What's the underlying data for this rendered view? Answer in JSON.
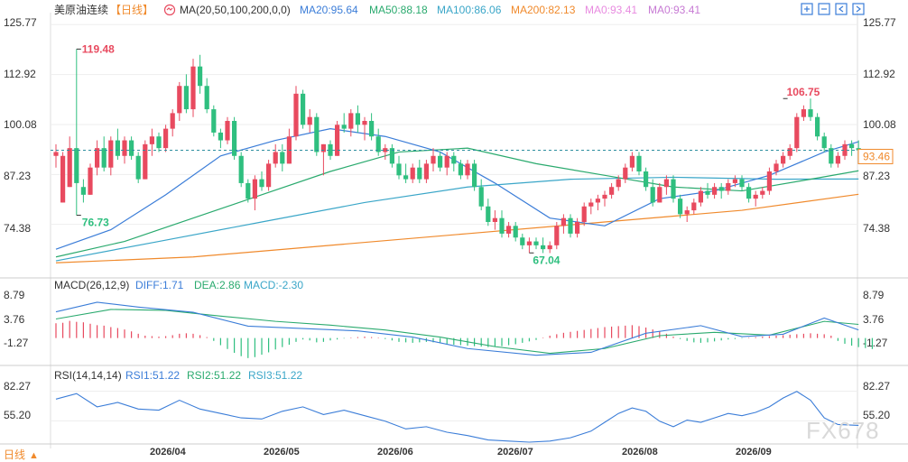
{
  "instrument": {
    "name": "美原油连续",
    "period": "【日线】"
  },
  "ma_header": {
    "label": "MA(20,50,100,200,0,0)",
    "values": [
      {
        "text": "MA20:95.64",
        "color": "#3b7dd8"
      },
      {
        "text": "MA50:88.18",
        "color": "#2aaa6e"
      },
      {
        "text": "MA100:86.06",
        "color": "#3aa6c8"
      },
      {
        "text": "MA200:82.13",
        "color": "#f08a2c"
      },
      {
        "text": "MA0:93.41",
        "color": "#e88be0"
      },
      {
        "text": "MA0:93.41",
        "color": "#c77ad4"
      }
    ]
  },
  "macd_header": {
    "label": "MACD(26,12,9)",
    "values": [
      {
        "text": "DIFF:1.71",
        "color": "#3b7dd8"
      },
      {
        "text": "DEA:2.86",
        "color": "#2aaa6e"
      },
      {
        "text": "MACD:-2.30",
        "color": "#3aa6c8"
      }
    ]
  },
  "rsi_header": {
    "label": "RSI(14,14,14)",
    "values": [
      {
        "text": "RSI1:51.22",
        "color": "#3b7dd8"
      },
      {
        "text": "RSI2:51.22",
        "color": "#2aaa6e"
      },
      {
        "text": "RSI3:51.22",
        "color": "#3aa6c8"
      }
    ]
  },
  "price_axis": {
    "ticks": [
      "125.77",
      "112.92",
      "100.08",
      "87.23",
      "74.38"
    ]
  },
  "macd_axis": {
    "ticks": [
      "8.79",
      "3.76",
      "-1.27"
    ]
  },
  "rsi_axis": {
    "ticks": [
      "82.27",
      "55.20"
    ]
  },
  "annotations": {
    "high": "119.48",
    "low": "76.73",
    "bottom_low": "67.04",
    "recent_high": "106.75",
    "last_price": "93.46"
  },
  "dates": [
    "2026/04",
    "2026/05",
    "2026/06",
    "2026/07",
    "2026/08",
    "2026/09"
  ],
  "footer": {
    "label": "日线",
    "arrow": "▲"
  },
  "watermark": "FX678",
  "colors": {
    "up": "#e84a5f",
    "down": "#2fbf7f",
    "grid": "#eeeeee",
    "lastline": "#2d8f9f",
    "last_bg": "#f08a2c"
  },
  "icons": [
    "zoom-in-icon",
    "zoom-out-icon",
    "scroll-left-icon",
    "scroll-right-icon"
  ],
  "chart_data": {
    "type": "candlestick",
    "y_range": [
      62,
      127
    ],
    "candles": [
      [
        92,
        95,
        89,
        93
      ],
      [
        80,
        93,
        80,
        92
      ],
      [
        84,
        97,
        84,
        94
      ],
      [
        94,
        119.48,
        76.73,
        85
      ],
      [
        84,
        86,
        80,
        82
      ],
      [
        82,
        90,
        82,
        89
      ],
      [
        89,
        96,
        87,
        94
      ],
      [
        94,
        97,
        88,
        89
      ],
      [
        89,
        97,
        87,
        96
      ],
      [
        96,
        99,
        91,
        92
      ],
      [
        92,
        97,
        90,
        96
      ],
      [
        96,
        97,
        91,
        92
      ],
      [
        92,
        93,
        85,
        86
      ],
      [
        86,
        96,
        86,
        95
      ],
      [
        95,
        99,
        92,
        97
      ],
      [
        97,
        98,
        93,
        94
      ],
      [
        94,
        100,
        93,
        99
      ],
      [
        99,
        104,
        97,
        103
      ],
      [
        103,
        111,
        101,
        110
      ],
      [
        110,
        113,
        103,
        104
      ],
      [
        104,
        117,
        102,
        115
      ],
      [
        115,
        118,
        108,
        110
      ],
      [
        110,
        112,
        103,
        104
      ],
      [
        104,
        105,
        97,
        98
      ],
      [
        98,
        99,
        94,
        96
      ],
      [
        96,
        102,
        95,
        101
      ],
      [
        101,
        102,
        91,
        92
      ],
      [
        92,
        93,
        84,
        85
      ],
      [
        85,
        86,
        80,
        81
      ],
      [
        81,
        87,
        78,
        86
      ],
      [
        86,
        88,
        83,
        84
      ],
      [
        84,
        91,
        83,
        90
      ],
      [
        90,
        95,
        89,
        93
      ],
      [
        93,
        95,
        88,
        90
      ],
      [
        90,
        99,
        90,
        97
      ],
      [
        97,
        110,
        96,
        108
      ],
      [
        108,
        109,
        99,
        100
      ],
      [
        100,
        104,
        98,
        102
      ],
      [
        102,
        103,
        92,
        93
      ],
      [
        93,
        95,
        87,
        95
      ],
      [
        95,
        96,
        91,
        92
      ],
      [
        92,
        101,
        92,
        100
      ],
      [
        100,
        103,
        98,
        99
      ],
      [
        99,
        104,
        97,
        103
      ],
      [
        103,
        105,
        98,
        100
      ],
      [
        100,
        102,
        96,
        101
      ],
      [
        101,
        103,
        96,
        97
      ],
      [
        97,
        99,
        92,
        93
      ],
      [
        93,
        95,
        91,
        94
      ],
      [
        94,
        95,
        89,
        90
      ],
      [
        90,
        92,
        86,
        87
      ],
      [
        87,
        90,
        85,
        86
      ],
      [
        86,
        90,
        85,
        89
      ],
      [
        89,
        91,
        85,
        86
      ],
      [
        86,
        91,
        85,
        90
      ],
      [
        90,
        94,
        88,
        92
      ],
      [
        92,
        93,
        88,
        89
      ],
      [
        89,
        93,
        87,
        92
      ],
      [
        92,
        93,
        88,
        90
      ],
      [
        90,
        91,
        86,
        87
      ],
      [
        87,
        91,
        86,
        90
      ],
      [
        90,
        91,
        83,
        84
      ],
      [
        84,
        86,
        78,
        79
      ],
      [
        79,
        81,
        74,
        75
      ],
      [
        75,
        78,
        73,
        76
      ],
      [
        76,
        78,
        71,
        72
      ],
      [
        72,
        75,
        71,
        74
      ],
      [
        74,
        75,
        70,
        71
      ],
      [
        71,
        72,
        68,
        69
      ],
      [
        69,
        71,
        67.04,
        70
      ],
      [
        70,
        71,
        68,
        69
      ],
      [
        69,
        71,
        67,
        68
      ],
      [
        68,
        70,
        67,
        69
      ],
      [
        69,
        75,
        68,
        74
      ],
      [
        74,
        77,
        72,
        76
      ],
      [
        76,
        77,
        71,
        72
      ],
      [
        72,
        76,
        71,
        75
      ],
      [
        75,
        80,
        74,
        79
      ],
      [
        79,
        81,
        77,
        80
      ],
      [
        80,
        82,
        78,
        81
      ],
      [
        81,
        83,
        79,
        82
      ],
      [
        82,
        85,
        81,
        84
      ],
      [
        84,
        87,
        83,
        86
      ],
      [
        86,
        90,
        85,
        89
      ],
      [
        89,
        93,
        88,
        92
      ],
      [
        92,
        93,
        87,
        88
      ],
      [
        88,
        89,
        83,
        84
      ],
      [
        84,
        86,
        79,
        80
      ],
      [
        80,
        85,
        80,
        84
      ],
      [
        84,
        87,
        82,
        86
      ],
      [
        86,
        87,
        80,
        81
      ],
      [
        81,
        82,
        76,
        77
      ],
      [
        77,
        79,
        75,
        78
      ],
      [
        78,
        81,
        77,
        80
      ],
      [
        80,
        84,
        79,
        83
      ],
      [
        83,
        85,
        81,
        82
      ],
      [
        82,
        85,
        81,
        84
      ],
      [
        84,
        85,
        81,
        83
      ],
      [
        83,
        86,
        82,
        85
      ],
      [
        85,
        87,
        84,
        86
      ],
      [
        86,
        87,
        83,
        84
      ],
      [
        84,
        85,
        80,
        81
      ],
      [
        81,
        83,
        79,
        82
      ],
      [
        82,
        84,
        81,
        83
      ],
      [
        83,
        89,
        82,
        88
      ],
      [
        88,
        91,
        87,
        90
      ],
      [
        90,
        93,
        89,
        92
      ],
      [
        92,
        95,
        91,
        94
      ],
      [
        94,
        103,
        93,
        102
      ],
      [
        102,
        105,
        101,
        104
      ],
      [
        104,
        106.75,
        101,
        102
      ],
      [
        102,
        103,
        96,
        97
      ],
      [
        97,
        98,
        93,
        94
      ],
      [
        94,
        95,
        89,
        90
      ],
      [
        90,
        93,
        89,
        92
      ],
      [
        92,
        96,
        91,
        95
      ],
      [
        95,
        96,
        92,
        94
      ],
      [
        94,
        96,
        92,
        93.46
      ]
    ],
    "ma20": [
      [
        0,
        68
      ],
      [
        8,
        73
      ],
      [
        16,
        82
      ],
      [
        24,
        92
      ],
      [
        32,
        96
      ],
      [
        40,
        99
      ],
      [
        48,
        97
      ],
      [
        56,
        93
      ],
      [
        64,
        85
      ],
      [
        72,
        76
      ],
      [
        80,
        74
      ],
      [
        88,
        81
      ],
      [
        96,
        83
      ],
      [
        104,
        87
      ],
      [
        112,
        93
      ],
      [
        117,
        95.64
      ]
    ],
    "ma50": [
      [
        0,
        66
      ],
      [
        10,
        70
      ],
      [
        20,
        76
      ],
      [
        30,
        82
      ],
      [
        40,
        88
      ],
      [
        50,
        93
      ],
      [
        60,
        94
      ],
      [
        70,
        90
      ],
      [
        80,
        87
      ],
      [
        90,
        84
      ],
      [
        100,
        83
      ],
      [
        110,
        86
      ],
      [
        117,
        88.18
      ]
    ],
    "ma100": [
      [
        0,
        65
      ],
      [
        15,
        70
      ],
      [
        30,
        75
      ],
      [
        45,
        80
      ],
      [
        60,
        84
      ],
      [
        75,
        86
      ],
      [
        90,
        86.5
      ],
      [
        105,
        86
      ],
      [
        117,
        86.06
      ]
    ],
    "ma200": [
      [
        0,
        64.5
      ],
      [
        20,
        66
      ],
      [
        40,
        69
      ],
      [
        60,
        72
      ],
      [
        80,
        75
      ],
      [
        100,
        78
      ],
      [
        117,
        82.13
      ]
    ],
    "macd_range": [
      -4.8,
      9.2
    ],
    "macd_hist": [
      3.1,
      3.2,
      3.6,
      3.4,
      3.3,
      3.0,
      2.7,
      2.6,
      2.3,
      2.1,
      1.8,
      1.4,
      0.9,
      0.5,
      0.4,
      0.3,
      0.4,
      0.6,
      0.9,
      1.0,
      0.9,
      0.6,
      0.2,
      -0.6,
      -1.5,
      -2.3,
      -3.1,
      -3.8,
      -4.2,
      -4.0,
      -3.5,
      -3.0,
      -2.4,
      -1.9,
      -1.4,
      -0.8,
      -0.3,
      -0.5,
      -0.9,
      -0.8,
      -0.5,
      -0.3,
      -0.1,
      0.1,
      0.2,
      0.3,
      0.2,
      0.1,
      -0.2,
      -0.5,
      -0.8,
      -0.9,
      -1.0,
      -0.9,
      -0.8,
      -0.9,
      -1.1,
      -1.3,
      -1.4,
      -1.5,
      -1.6,
      -1.7,
      -1.8,
      -1.9,
      -1.8,
      -1.7,
      -1.5,
      -1.3,
      -1.0,
      -0.7,
      -0.4,
      0.1,
      0.5,
      0.8,
      1.1,
      1.3,
      1.5,
      1.7,
      1.9,
      2.1,
      2.3,
      2.4,
      2.5,
      2.6,
      2.7,
      2.5,
      2.2,
      1.8,
      1.4,
      0.9,
      0.3,
      -0.2,
      -0.6,
      -0.9,
      -1.0,
      -0.9,
      -0.7,
      -0.5,
      -0.3,
      -0.2,
      -0.1,
      0.1,
      0.2,
      0.3,
      0.4,
      0.5,
      0.6,
      0.7,
      0.8,
      0.9,
      1.0,
      0.9,
      0.8,
      0.5,
      -0.6,
      -1.2,
      -1.6,
      -1.9,
      -2.1,
      -2.3
    ],
    "macd_diff": [
      [
        0,
        5.5
      ],
      [
        6,
        7.5
      ],
      [
        12,
        6.5
      ],
      [
        20,
        5.4
      ],
      [
        28,
        2.5
      ],
      [
        36,
        2.0
      ],
      [
        44,
        1.5
      ],
      [
        52,
        0.2
      ],
      [
        60,
        -2.2
      ],
      [
        70,
        -3.6
      ],
      [
        78,
        -3.0
      ],
      [
        86,
        1.0
      ],
      [
        94,
        2.6
      ],
      [
        100,
        0.3
      ],
      [
        106,
        0.8
      ],
      [
        112,
        4.2
      ],
      [
        117,
        1.71
      ]
    ],
    "macd_dea": [
      [
        0,
        4.0
      ],
      [
        8,
        6.0
      ],
      [
        16,
        5.8
      ],
      [
        24,
        4.6
      ],
      [
        32,
        3.5
      ],
      [
        40,
        2.7
      ],
      [
        48,
        1.7
      ],
      [
        56,
        0.2
      ],
      [
        64,
        -1.8
      ],
      [
        72,
        -3.2
      ],
      [
        80,
        -2.2
      ],
      [
        88,
        0.5
      ],
      [
        96,
        1.2
      ],
      [
        104,
        0.6
      ],
      [
        112,
        3.5
      ],
      [
        117,
        2.86
      ]
    ],
    "rsi_range": [
      36,
      90
    ],
    "rsi1": [
      [
        0,
        75
      ],
      [
        3,
        80
      ],
      [
        6,
        68
      ],
      [
        9,
        72
      ],
      [
        12,
        66
      ],
      [
        15,
        65
      ],
      [
        18,
        74
      ],
      [
        21,
        66
      ],
      [
        24,
        62
      ],
      [
        27,
        58
      ],
      [
        30,
        57
      ],
      [
        33,
        64
      ],
      [
        36,
        68
      ],
      [
        39,
        61
      ],
      [
        42,
        65
      ],
      [
        45,
        60
      ],
      [
        48,
        55
      ],
      [
        51,
        48
      ],
      [
        54,
        50
      ],
      [
        57,
        45
      ],
      [
        60,
        42
      ],
      [
        63,
        38
      ],
      [
        66,
        37
      ],
      [
        69,
        36
      ],
      [
        72,
        37
      ],
      [
        75,
        40
      ],
      [
        78,
        46
      ],
      [
        80,
        54
      ],
      [
        82,
        62
      ],
      [
        84,
        67
      ],
      [
        86,
        64
      ],
      [
        88,
        55
      ],
      [
        90,
        50
      ],
      [
        92,
        56
      ],
      [
        94,
        54
      ],
      [
        96,
        58
      ],
      [
        98,
        62
      ],
      [
        100,
        60
      ],
      [
        102,
        63
      ],
      [
        104,
        68
      ],
      [
        106,
        76
      ],
      [
        108,
        82
      ],
      [
        110,
        74
      ],
      [
        112,
        58
      ],
      [
        114,
        52
      ],
      [
        117,
        51.22
      ]
    ]
  }
}
